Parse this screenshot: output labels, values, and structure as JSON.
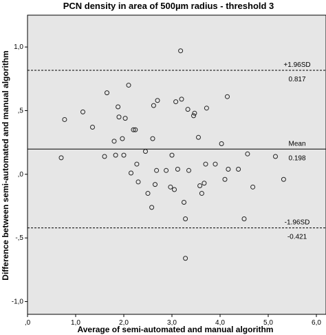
{
  "chart_data": {
    "type": "scatter",
    "title": "PCN density in area of 500µm radius - threshold 3",
    "xlabel": "Average of semi-automated and manual algorithm",
    "ylabel": "Difference between semi-automated and manual algorithm",
    "xlim": [
      0.0,
      6.2
    ],
    "ylim": [
      -1.1,
      1.25
    ],
    "x_ticks": [
      0.0,
      1.0,
      2.0,
      3.0,
      4.0,
      5.0,
      6.0
    ],
    "x_tick_labels": [
      ",0",
      "1,0",
      "2,0",
      "3,0",
      "4,0",
      "5,0",
      "6,0"
    ],
    "y_ticks": [
      -1.0,
      -0.5,
      0.0,
      0.5,
      1.0
    ],
    "y_tick_labels": [
      "-1,0",
      "-,5",
      ",0",
      ",5",
      "1,0"
    ],
    "grid": false,
    "plot_background": "#e6e6e6",
    "marker_color": "#222222",
    "reference_lines": [
      {
        "value": 0.817,
        "style": "dashed",
        "label": "+1.96SD",
        "value_label": "0.817"
      },
      {
        "value": 0.198,
        "style": "solid",
        "label": "Mean",
        "value_label": "0.198"
      },
      {
        "value": -0.421,
        "style": "dashed",
        "label": "-1.96SD",
        "value_label": "-0.421"
      }
    ],
    "points": [
      {
        "x": 0.7,
        "y": 0.13
      },
      {
        "x": 0.77,
        "y": 0.43
      },
      {
        "x": 1.15,
        "y": 0.49
      },
      {
        "x": 1.35,
        "y": 0.37
      },
      {
        "x": 1.6,
        "y": 0.14
      },
      {
        "x": 1.65,
        "y": 0.64
      },
      {
        "x": 1.8,
        "y": 0.26
      },
      {
        "x": 1.83,
        "y": 0.15
      },
      {
        "x": 1.88,
        "y": 0.53
      },
      {
        "x": 1.9,
        "y": 0.45
      },
      {
        "x": 1.97,
        "y": 0.28
      },
      {
        "x": 2.0,
        "y": 0.15
      },
      {
        "x": 2.03,
        "y": 0.44
      },
      {
        "x": 2.1,
        "y": 0.7
      },
      {
        "x": 2.15,
        "y": 0.01
      },
      {
        "x": 2.2,
        "y": 0.35
      },
      {
        "x": 2.24,
        "y": 0.35
      },
      {
        "x": 2.27,
        "y": 0.08
      },
      {
        "x": 2.3,
        "y": -0.06
      },
      {
        "x": 2.45,
        "y": 0.18
      },
      {
        "x": 2.5,
        "y": -0.15
      },
      {
        "x": 2.58,
        "y": -0.26
      },
      {
        "x": 2.6,
        "y": 0.28
      },
      {
        "x": 2.62,
        "y": 0.54
      },
      {
        "x": 2.65,
        "y": -0.08
      },
      {
        "x": 2.68,
        "y": 0.03
      },
      {
        "x": 2.7,
        "y": 0.58
      },
      {
        "x": 2.88,
        "y": 0.03
      },
      {
        "x": 2.97,
        "y": -0.1
      },
      {
        "x": 3.0,
        "y": 0.15
      },
      {
        "x": 3.05,
        "y": -0.12
      },
      {
        "x": 3.08,
        "y": 0.57
      },
      {
        "x": 3.12,
        "y": 0.04
      },
      {
        "x": 3.18,
        "y": 0.97
      },
      {
        "x": 3.2,
        "y": 0.59
      },
      {
        "x": 3.25,
        "y": -0.22
      },
      {
        "x": 3.28,
        "y": -0.35
      },
      {
        "x": 3.28,
        "y": -0.66
      },
      {
        "x": 3.33,
        "y": 0.51
      },
      {
        "x": 3.35,
        "y": 0.03
      },
      {
        "x": 3.45,
        "y": 0.46
      },
      {
        "x": 3.47,
        "y": 0.48
      },
      {
        "x": 3.55,
        "y": 0.29
      },
      {
        "x": 3.58,
        "y": -0.09
      },
      {
        "x": 3.62,
        "y": -0.15
      },
      {
        "x": 3.67,
        "y": -0.07
      },
      {
        "x": 3.7,
        "y": 0.08
      },
      {
        "x": 3.72,
        "y": 0.52
      },
      {
        "x": 3.9,
        "y": 0.08
      },
      {
        "x": 4.03,
        "y": 0.24
      },
      {
        "x": 4.1,
        "y": -0.04
      },
      {
        "x": 4.15,
        "y": 0.61
      },
      {
        "x": 4.17,
        "y": 0.04
      },
      {
        "x": 4.38,
        "y": 0.04
      },
      {
        "x": 4.5,
        "y": -0.35
      },
      {
        "x": 4.57,
        "y": 0.16
      },
      {
        "x": 4.68,
        "y": -0.1
      },
      {
        "x": 5.15,
        "y": 0.14
      },
      {
        "x": 5.32,
        "y": -0.04
      }
    ]
  }
}
